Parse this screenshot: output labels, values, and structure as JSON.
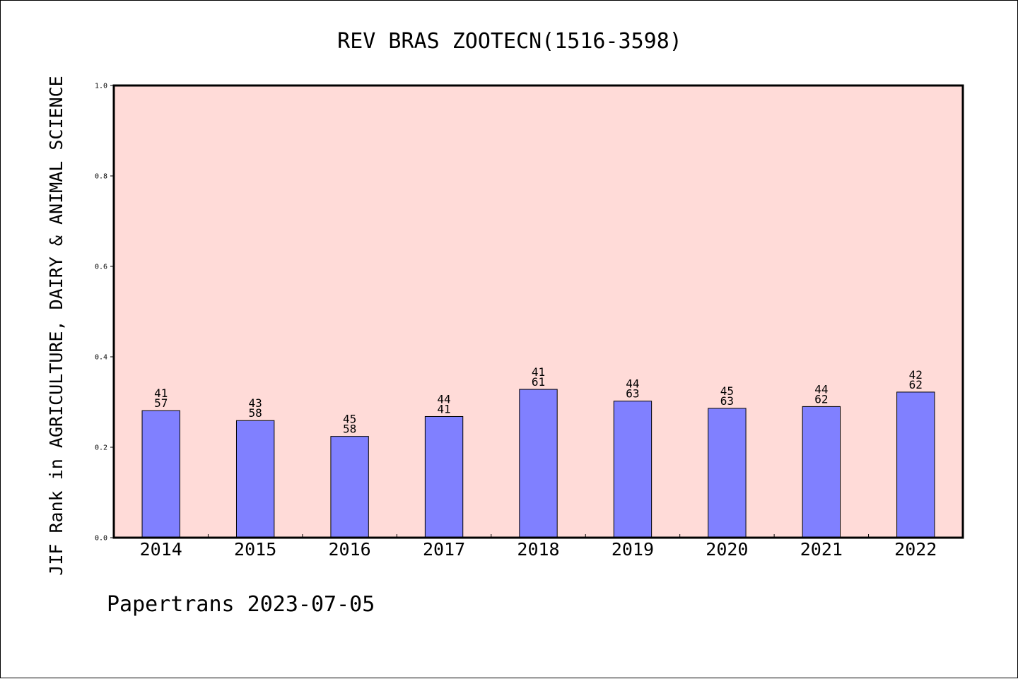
{
  "chart_data": {
    "type": "bar",
    "title": "REV BRAS ZOOTECN(1516-3598)",
    "ylabel": "JIF Rank in AGRICULTURE, DAIRY & ANIMAL SCIENCE",
    "xlabel": "",
    "categories": [
      "2014",
      "2015",
      "2016",
      "2017",
      "2018",
      "2019",
      "2020",
      "2021",
      "2022"
    ],
    "values": [
      0.281,
      0.259,
      0.224,
      0.268,
      0.328,
      0.302,
      0.286,
      0.29,
      0.322
    ],
    "labels_top": [
      "41",
      "43",
      "45",
      "44",
      "41",
      "44",
      "45",
      "44",
      "42"
    ],
    "labels_bottom": [
      "57",
      "58",
      "58",
      "41",
      "61",
      "63",
      "63",
      "62",
      "62"
    ],
    "ylim": [
      0,
      1.0
    ],
    "yticks": [
      "0.0",
      "0.2",
      "0.4",
      "0.6",
      "0.8",
      "1.0"
    ],
    "grid": false,
    "legend": "none",
    "colors": {
      "bar_fill": "#8080ff",
      "plot_background": "#ffdbd8",
      "axis": "#000000"
    },
    "footer": "Papertrans 2023-07-05"
  }
}
